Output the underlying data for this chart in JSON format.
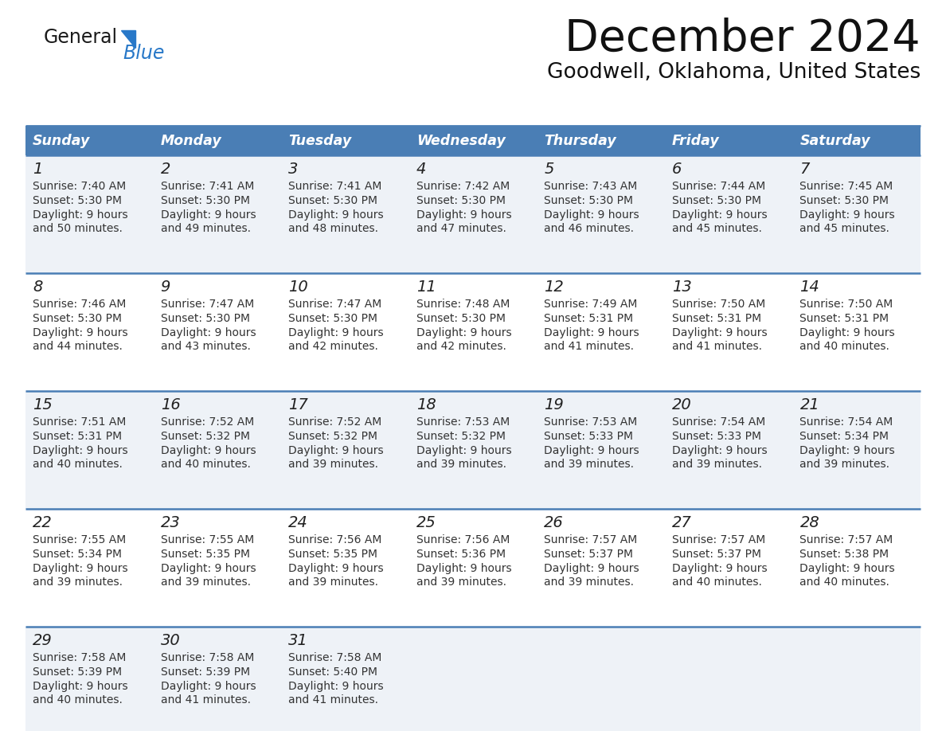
{
  "title": "December 2024",
  "subtitle": "Goodwell, Oklahoma, United States",
  "header_bg": "#4a7eb5",
  "header_text_color": "#ffffff",
  "row_bg_odd": "#eef2f7",
  "row_bg_even": "#ffffff",
  "separator_color": "#4a7eb5",
  "days_of_week": [
    "Sunday",
    "Monday",
    "Tuesday",
    "Wednesday",
    "Thursday",
    "Friday",
    "Saturday"
  ],
  "calendar_data": [
    [
      {
        "day": "1",
        "sunrise": "7:40 AM",
        "sunset": "5:30 PM",
        "daylight1": "9 hours",
        "daylight2": "and 50 minutes."
      },
      {
        "day": "2",
        "sunrise": "7:41 AM",
        "sunset": "5:30 PM",
        "daylight1": "9 hours",
        "daylight2": "and 49 minutes."
      },
      {
        "day": "3",
        "sunrise": "7:41 AM",
        "sunset": "5:30 PM",
        "daylight1": "9 hours",
        "daylight2": "and 48 minutes."
      },
      {
        "day": "4",
        "sunrise": "7:42 AM",
        "sunset": "5:30 PM",
        "daylight1": "9 hours",
        "daylight2": "and 47 minutes."
      },
      {
        "day": "5",
        "sunrise": "7:43 AM",
        "sunset": "5:30 PM",
        "daylight1": "9 hours",
        "daylight2": "and 46 minutes."
      },
      {
        "day": "6",
        "sunrise": "7:44 AM",
        "sunset": "5:30 PM",
        "daylight1": "9 hours",
        "daylight2": "and 45 minutes."
      },
      {
        "day": "7",
        "sunrise": "7:45 AM",
        "sunset": "5:30 PM",
        "daylight1": "9 hours",
        "daylight2": "and 45 minutes."
      }
    ],
    [
      {
        "day": "8",
        "sunrise": "7:46 AM",
        "sunset": "5:30 PM",
        "daylight1": "9 hours",
        "daylight2": "and 44 minutes."
      },
      {
        "day": "9",
        "sunrise": "7:47 AM",
        "sunset": "5:30 PM",
        "daylight1": "9 hours",
        "daylight2": "and 43 minutes."
      },
      {
        "day": "10",
        "sunrise": "7:47 AM",
        "sunset": "5:30 PM",
        "daylight1": "9 hours",
        "daylight2": "and 42 minutes."
      },
      {
        "day": "11",
        "sunrise": "7:48 AM",
        "sunset": "5:30 PM",
        "daylight1": "9 hours",
        "daylight2": "and 42 minutes."
      },
      {
        "day": "12",
        "sunrise": "7:49 AM",
        "sunset": "5:31 PM",
        "daylight1": "9 hours",
        "daylight2": "and 41 minutes."
      },
      {
        "day": "13",
        "sunrise": "7:50 AM",
        "sunset": "5:31 PM",
        "daylight1": "9 hours",
        "daylight2": "and 41 minutes."
      },
      {
        "day": "14",
        "sunrise": "7:50 AM",
        "sunset": "5:31 PM",
        "daylight1": "9 hours",
        "daylight2": "and 40 minutes."
      }
    ],
    [
      {
        "day": "15",
        "sunrise": "7:51 AM",
        "sunset": "5:31 PM",
        "daylight1": "9 hours",
        "daylight2": "and 40 minutes."
      },
      {
        "day": "16",
        "sunrise": "7:52 AM",
        "sunset": "5:32 PM",
        "daylight1": "9 hours",
        "daylight2": "and 40 minutes."
      },
      {
        "day": "17",
        "sunrise": "7:52 AM",
        "sunset": "5:32 PM",
        "daylight1": "9 hours",
        "daylight2": "and 39 minutes."
      },
      {
        "day": "18",
        "sunrise": "7:53 AM",
        "sunset": "5:32 PM",
        "daylight1": "9 hours",
        "daylight2": "and 39 minutes."
      },
      {
        "day": "19",
        "sunrise": "7:53 AM",
        "sunset": "5:33 PM",
        "daylight1": "9 hours",
        "daylight2": "and 39 minutes."
      },
      {
        "day": "20",
        "sunrise": "7:54 AM",
        "sunset": "5:33 PM",
        "daylight1": "9 hours",
        "daylight2": "and 39 minutes."
      },
      {
        "day": "21",
        "sunrise": "7:54 AM",
        "sunset": "5:34 PM",
        "daylight1": "9 hours",
        "daylight2": "and 39 minutes."
      }
    ],
    [
      {
        "day": "22",
        "sunrise": "7:55 AM",
        "sunset": "5:34 PM",
        "daylight1": "9 hours",
        "daylight2": "and 39 minutes."
      },
      {
        "day": "23",
        "sunrise": "7:55 AM",
        "sunset": "5:35 PM",
        "daylight1": "9 hours",
        "daylight2": "and 39 minutes."
      },
      {
        "day": "24",
        "sunrise": "7:56 AM",
        "sunset": "5:35 PM",
        "daylight1": "9 hours",
        "daylight2": "and 39 minutes."
      },
      {
        "day": "25",
        "sunrise": "7:56 AM",
        "sunset": "5:36 PM",
        "daylight1": "9 hours",
        "daylight2": "and 39 minutes."
      },
      {
        "day": "26",
        "sunrise": "7:57 AM",
        "sunset": "5:37 PM",
        "daylight1": "9 hours",
        "daylight2": "and 39 minutes."
      },
      {
        "day": "27",
        "sunrise": "7:57 AM",
        "sunset": "5:37 PM",
        "daylight1": "9 hours",
        "daylight2": "and 40 minutes."
      },
      {
        "day": "28",
        "sunrise": "7:57 AM",
        "sunset": "5:38 PM",
        "daylight1": "9 hours",
        "daylight2": "and 40 minutes."
      }
    ],
    [
      {
        "day": "29",
        "sunrise": "7:58 AM",
        "sunset": "5:39 PM",
        "daylight1": "9 hours",
        "daylight2": "and 40 minutes."
      },
      {
        "day": "30",
        "sunrise": "7:58 AM",
        "sunset": "5:39 PM",
        "daylight1": "9 hours",
        "daylight2": "and 41 minutes."
      },
      {
        "day": "31",
        "sunrise": "7:58 AM",
        "sunset": "5:40 PM",
        "daylight1": "9 hours",
        "daylight2": "and 41 minutes."
      },
      null,
      null,
      null,
      null
    ]
  ],
  "logo_general_color": "#1a1a1a",
  "logo_blue_color": "#2878c8",
  "logo_triangle_color": "#2878c8",
  "fig_width": 11.88,
  "fig_height": 9.18,
  "dpi": 100
}
